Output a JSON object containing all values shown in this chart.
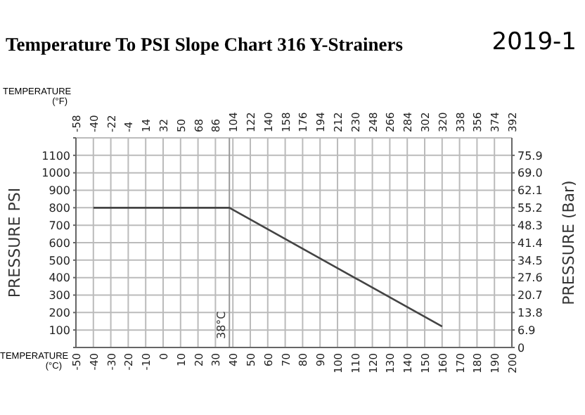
{
  "chart_data": {
    "type": "line",
    "title": "Temperature To PSI Slope Chart 316 Y-Strainers",
    "annotations": [
      "2019-1"
    ],
    "xlabel": "TEMPERATURE (°C)",
    "x2label": "TEMPERATURE (°F)",
    "ylabel": "PRESSURE  PSI",
    "y2label": "PRESSURE  (Bar)",
    "x": [
      -40,
      38,
      160
    ],
    "series": [
      {
        "color": "#444444",
        "values": [
          800,
          800,
          120
        ]
      }
    ],
    "xlim": [
      -50,
      200
    ],
    "xticks": [
      -50,
      -40,
      -30,
      -20,
      -10,
      0,
      10,
      20,
      30,
      40,
      50,
      60,
      70,
      80,
      90,
      100,
      110,
      120,
      130,
      140,
      150,
      160,
      170,
      180,
      190,
      200
    ],
    "x2lim": [
      -58,
      392
    ],
    "x2ticks": [
      -58,
      -40,
      -22,
      -4,
      14,
      32,
      50,
      68,
      86,
      104,
      122,
      140,
      158,
      176,
      194,
      212,
      230,
      248,
      266,
      284,
      302,
      320,
      338,
      356,
      374,
      392
    ],
    "ylim": [
      0,
      1200
    ],
    "yticks": [
      {
        "value": 0,
        "label": null
      },
      100,
      200,
      300,
      400,
      500,
      600,
      700,
      800,
      900,
      1000,
      1100,
      {
        "value": 1200,
        "label": null
      }
    ],
    "y2lim": [
      0,
      82.8
    ],
    "y2ticks": [
      0,
      6.9,
      13.8,
      20.7,
      27.6,
      34.5,
      41.4,
      48.3,
      55.2,
      62.1,
      {
        "value": 69,
        "label": "69.0"
      },
      75.9
    ],
    "ref_lines": [
      {
        "axis": "x",
        "value": 38,
        "label": "38°C",
        "color": "#999999"
      }
    ],
    "grid": true,
    "marker": "none",
    "line_style": "solid"
  }
}
